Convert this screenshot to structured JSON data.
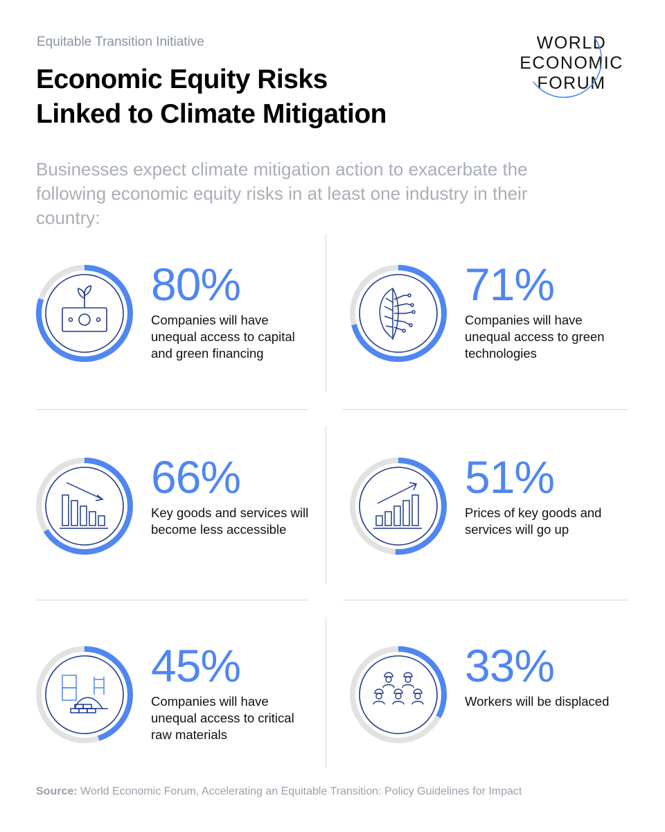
{
  "header": {
    "eyebrow": "Equitable Transition Initiative",
    "title_line1": "Economic Equity Risks",
    "title_line2": "Linked to Climate Mitigation"
  },
  "logo": {
    "line1": "WORLD",
    "line2": "ECONOMIC",
    "line3": "FORUM"
  },
  "intro": "Businesses expect climate mitigation action to exacerbate the following economic equity risks in at least one industry in their country:",
  "colors": {
    "accent": "#4f86f2",
    "ring_track": "#e2e2e2",
    "icon_stroke": "#1f3a8a"
  },
  "stats": [
    {
      "value": "80%",
      "percent": 80,
      "desc": "Companies will have unequal access to capital and green financing",
      "icon": "money-plant-icon"
    },
    {
      "value": "71%",
      "percent": 71,
      "desc": "Companies will have unequal access to green technologies",
      "icon": "circuit-leaf-icon"
    },
    {
      "value": "66%",
      "percent": 66,
      "desc": "Key goods and services will become less accessible",
      "icon": "declining-bar-chart-icon"
    },
    {
      "value": "51%",
      "percent": 51,
      "desc": "Prices of key goods and services will go up",
      "icon": "rising-bar-chart-icon"
    },
    {
      "value": "45%",
      "percent": 45,
      "desc": "Companies will have unequal access to critical raw materials",
      "icon": "raw-materials-icon"
    },
    {
      "value": "33%",
      "percent": 33,
      "desc": "Workers will be displaced",
      "icon": "workers-group-icon"
    }
  ],
  "source": {
    "label": "Source:",
    "text": " World Economic Forum, Accelerating an Equitable Transition: Policy Guidelines for Impact"
  }
}
